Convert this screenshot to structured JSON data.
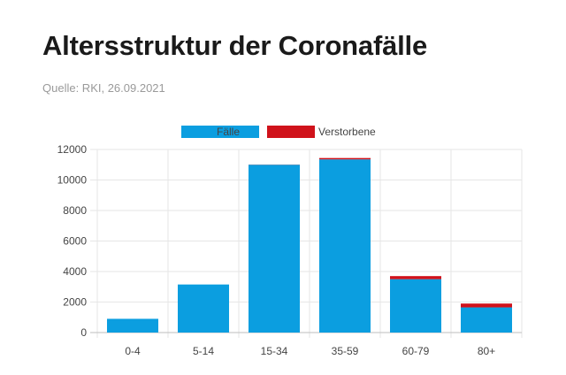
{
  "header": {
    "title": "Altersstruktur der Coronafälle",
    "source": "Quelle: RKI, 26.09.2021"
  },
  "chart_data": {
    "type": "bar",
    "stacked": true,
    "categories": [
      "0-4",
      "5-14",
      "15-34",
      "35-59",
      "60-79",
      "80+"
    ],
    "series": [
      {
        "name": "Fälle",
        "color": "#0b9ee0",
        "values": [
          900,
          3150,
          11000,
          11350,
          3500,
          1650
        ]
      },
      {
        "name": "Verstorbene",
        "color": "#d0121b",
        "values": [
          0,
          0,
          10,
          90,
          200,
          250
        ]
      }
    ],
    "ylim": [
      0,
      12000
    ],
    "yticks": [
      0,
      2000,
      4000,
      6000,
      8000,
      10000,
      12000
    ],
    "grid": true,
    "legend_position": "top-center"
  }
}
